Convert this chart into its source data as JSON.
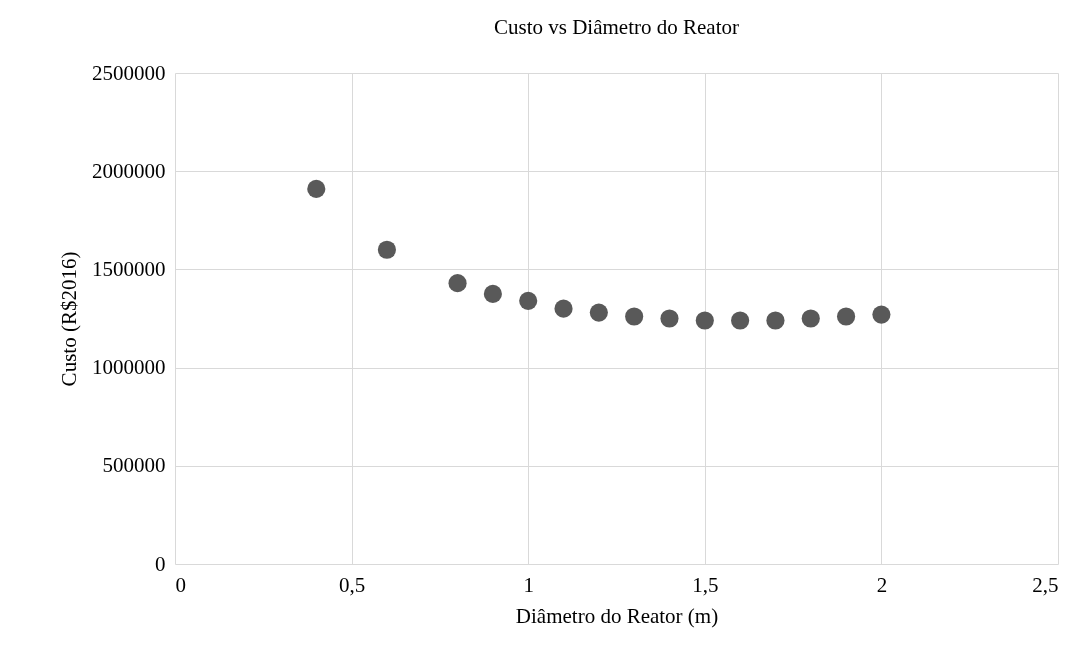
{
  "chart_data": {
    "type": "scatter",
    "title": "Custo vs Diâmetro do Reator",
    "xlabel": "Diâmetro do Reator (m)",
    "ylabel": "Custo (R$2016)",
    "x": [
      0.4,
      0.6,
      0.8,
      0.9,
      1.0,
      1.1,
      1.2,
      1.3,
      1.4,
      1.5,
      1.6,
      1.7,
      1.8,
      1.9,
      2.0
    ],
    "series": [
      {
        "color": "#595959",
        "values": [
          1910000,
          1600000,
          1430000,
          1375000,
          1340000,
          1300000,
          1280000,
          1260000,
          1250000,
          1240000,
          1240000,
          1240000,
          1250000,
          1260000,
          1270000
        ]
      }
    ],
    "xlim": [
      0,
      2.5
    ],
    "xticks": [
      0,
      {
        "value": 0.5,
        "label": "0,5"
      },
      1,
      {
        "value": 1.5,
        "label": "1,5"
      },
      2,
      {
        "value": 2.5,
        "label": "2,5"
      }
    ],
    "ylim": [
      0,
      2500000
    ],
    "yticks": [
      0,
      500000,
      1000000,
      1500000,
      2000000,
      2500000
    ],
    "grid": true,
    "marker": "circle"
  }
}
